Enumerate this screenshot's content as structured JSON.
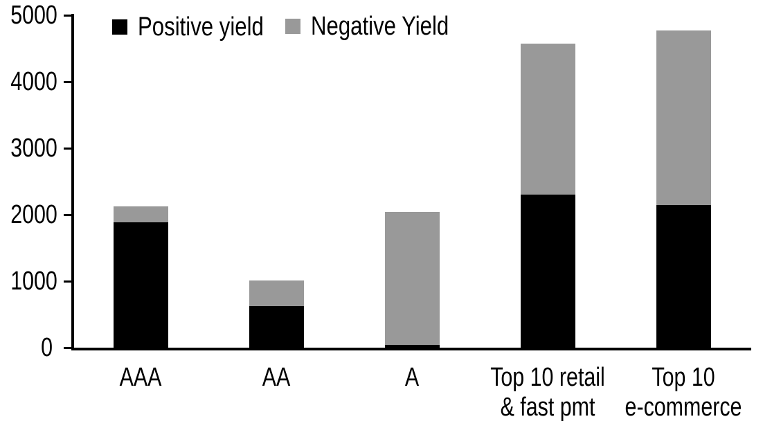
{
  "chart_data": {
    "type": "bar",
    "stacked": true,
    "title": "",
    "categories": [
      "AAA",
      "AA",
      "A",
      "Top 10 retail\n& fast pmt",
      "Top 10\ne-commerce"
    ],
    "series": [
      {
        "name": "Positive yield",
        "color": "#000000",
        "values": [
          1890,
          620,
          40,
          2300,
          2150
        ]
      },
      {
        "name": "Negative Yield",
        "color": "#999999",
        "values": [
          240,
          390,
          2000,
          2270,
          2620
        ]
      }
    ],
    "totals": [
      2130,
      1010,
      2040,
      4570,
      4770
    ],
    "xlabel": "",
    "ylabel": "",
    "ylim": [
      0,
      5000
    ],
    "yticks": [
      "0",
      "1000",
      "2000",
      "3000",
      "4000",
      "5000"
    ],
    "grid": false,
    "legend_position": "top",
    "axis_color": "#000000",
    "background_color": "#ffffff"
  }
}
